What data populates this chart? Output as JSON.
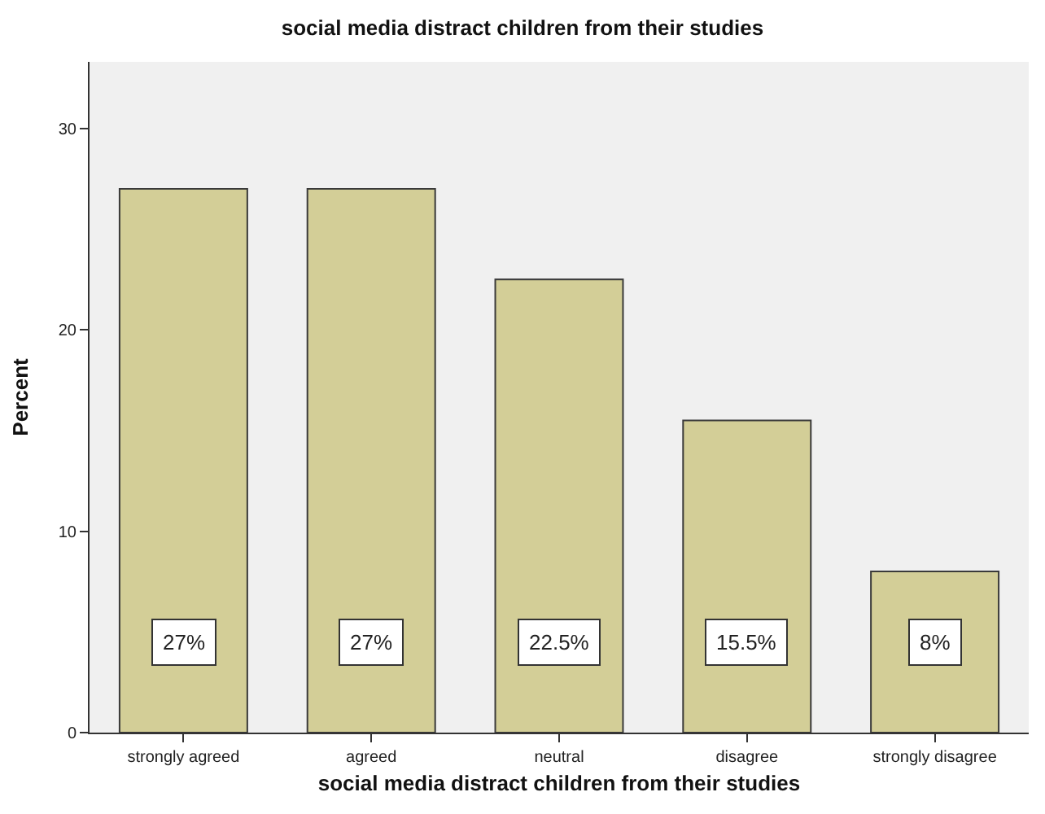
{
  "chart_data": {
    "type": "bar",
    "title": "social media distract children from their studies",
    "xlabel": "social media distract children from their studies",
    "ylabel": "Percent",
    "categories": [
      "strongly agreed",
      "agreed",
      "neutral",
      "disagree",
      "strongly disagree"
    ],
    "values": [
      27,
      27,
      22.5,
      15.5,
      8
    ],
    "value_labels": [
      "27%",
      "27%",
      "22.5%",
      "15.5%",
      "8%"
    ],
    "color": "#d3ce97",
    "ylim": [
      0,
      33.3
    ],
    "yticks": [
      0,
      10,
      20,
      30
    ],
    "grid": false,
    "legend": false
  }
}
